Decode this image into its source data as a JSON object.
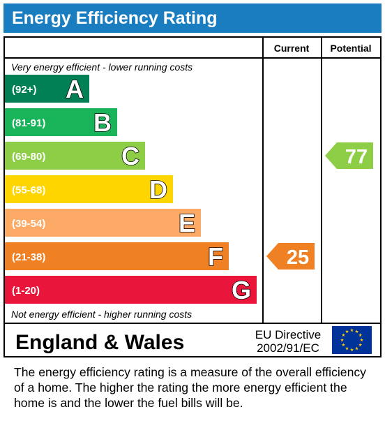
{
  "title": "Energy Efficiency Rating",
  "columns": {
    "current": "Current",
    "potential": "Potential"
  },
  "notes": {
    "top": "Very energy efficient - lower running costs",
    "bottom": "Not energy efficient - higher running costs"
  },
  "footer": {
    "region": "England & Wales",
    "directive_line1": "EU Directive",
    "directive_line2": "2002/91/EC"
  },
  "description": "The energy efficiency rating is a measure of the overall efficiency of a home.  The higher the rating the more energy efficient the home is and the lower the fuel bills will be.",
  "chart_data": {
    "type": "bar",
    "title": "Energy Efficiency Rating",
    "bands": [
      {
        "letter": "A",
        "range": "(92+)",
        "min": 92,
        "max": 100,
        "color": "#008054"
      },
      {
        "letter": "B",
        "range": "(81-91)",
        "min": 81,
        "max": 91,
        "color": "#19b459"
      },
      {
        "letter": "C",
        "range": "(69-80)",
        "min": 69,
        "max": 80,
        "color": "#8dce46"
      },
      {
        "letter": "D",
        "range": "(55-68)",
        "min": 55,
        "max": 68,
        "color": "#ffd500"
      },
      {
        "letter": "E",
        "range": "(39-54)",
        "min": 39,
        "max": 54,
        "color": "#fcaa65"
      },
      {
        "letter": "F",
        "range": "(21-38)",
        "min": 21,
        "max": 38,
        "color": "#ef8023"
      },
      {
        "letter": "G",
        "range": "(1-20)",
        "min": 1,
        "max": 20,
        "color": "#e9153b"
      }
    ],
    "current": {
      "value": 25,
      "band": "F",
      "color": "#ef8023"
    },
    "potential": {
      "value": 77,
      "band": "C",
      "color": "#8dce46"
    }
  }
}
